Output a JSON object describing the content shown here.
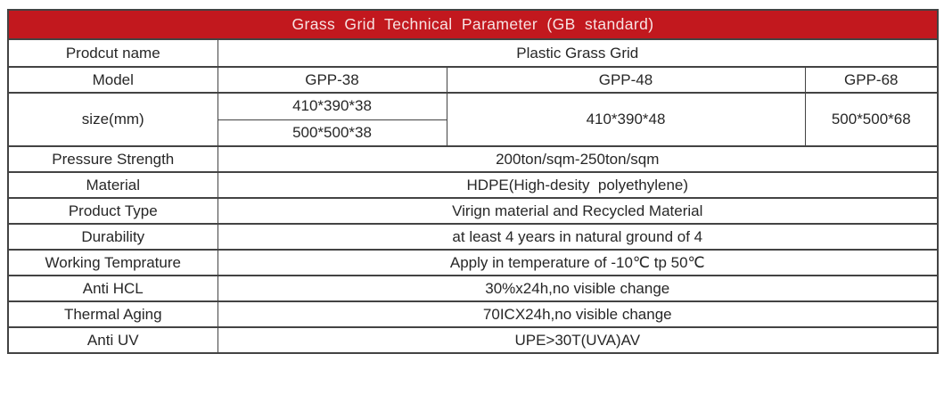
{
  "title": "Grass Grid Technical Parameter (GB standard)",
  "colors": {
    "header_bg": "#c2181e",
    "header_text": "#f7e3e3",
    "border": "#434343",
    "text": "#272727"
  },
  "table": {
    "product_name": {
      "label": "Prodcut name",
      "value": "Plastic Grass Grid"
    },
    "model": {
      "label": "Model",
      "values": [
        "GPP-38",
        "GPP-48",
        "GPP-68"
      ]
    },
    "size": {
      "label": "size(mm)",
      "gpp38": [
        "410*390*38",
        "500*500*38"
      ],
      "gpp48": "410*390*48",
      "gpp68": "500*500*68"
    },
    "rows": [
      {
        "label": "Pressure Strength",
        "value": "200ton/sqm-250ton/sqm"
      },
      {
        "label": "Material",
        "value": "HDPE(High-desity  polyethylene)"
      },
      {
        "label": "Product Type",
        "value": "Virign material and Recycled Material"
      },
      {
        "label": "Durability",
        "value": "at least 4 years in natural ground of 4"
      },
      {
        "label": "Working Temprature",
        "value": "Apply in temperature of -10℃ tp 50℃"
      },
      {
        "label": "Anti HCL",
        "value": "30%x24h,no visible change"
      },
      {
        "label": "Thermal Aging",
        "value": "70ICX24h,no visible change"
      },
      {
        "label": "Anti UV",
        "value": "UPE>30T(UVA)AV"
      }
    ]
  }
}
